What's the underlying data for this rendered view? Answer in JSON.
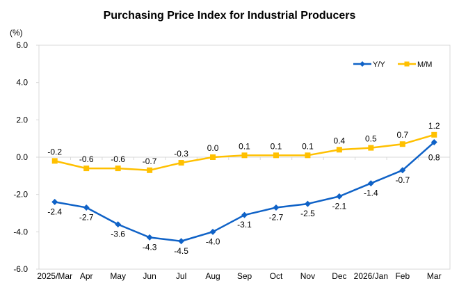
{
  "chart_data": {
    "type": "line",
    "title": "Purchasing Price Index for Industrial Producers",
    "ylabel": "(%)",
    "xlabel": "",
    "ylim": [
      -6.0,
      6.0
    ],
    "yticks": [
      -6.0,
      -4.0,
      -2.0,
      0.0,
      2.0,
      4.0,
      6.0
    ],
    "ytick_labels": [
      "-6.0",
      "-4.0",
      "-2.0",
      "0.0",
      "2.0",
      "4.0",
      "6.0"
    ],
    "grid": false,
    "legend_position": "top-right",
    "categories": [
      "2025/Mar",
      "Apr",
      "May",
      "Jun",
      "Jul",
      "Aug",
      "Sep",
      "Oct",
      "Nov",
      "Dec",
      "2026/Jan",
      "Feb",
      "Mar"
    ],
    "series": [
      {
        "name": "Y/Y",
        "color": "#0F62C7",
        "marker": "diamond",
        "label_position": "below",
        "values": [
          -2.4,
          -2.7,
          -3.6,
          -4.3,
          -4.5,
          -4.0,
          -3.1,
          -2.7,
          -2.5,
          -2.1,
          -1.4,
          -0.7,
          0.8
        ],
        "labels": [
          "-2.4",
          "-2.7",
          "-3.6",
          "-4.3",
          "-4.5",
          "-4.0",
          "-3.1",
          "-2.7",
          "-2.5",
          "-2.1",
          "-1.4",
          "-0.7",
          "0.8"
        ]
      },
      {
        "name": "M/M",
        "color": "#FFC000",
        "marker": "square",
        "label_position": "above",
        "values": [
          -0.2,
          -0.6,
          -0.6,
          -0.7,
          -0.3,
          0.0,
          0.1,
          0.1,
          0.1,
          0.4,
          0.5,
          0.7,
          1.2
        ],
        "labels": [
          "-0.2",
          "-0.6",
          "-0.6",
          "-0.7",
          "-0.3",
          "0.0",
          "0.1",
          "0.1",
          "0.1",
          "0.4",
          "0.5",
          "0.7",
          "1.2"
        ]
      }
    ]
  }
}
